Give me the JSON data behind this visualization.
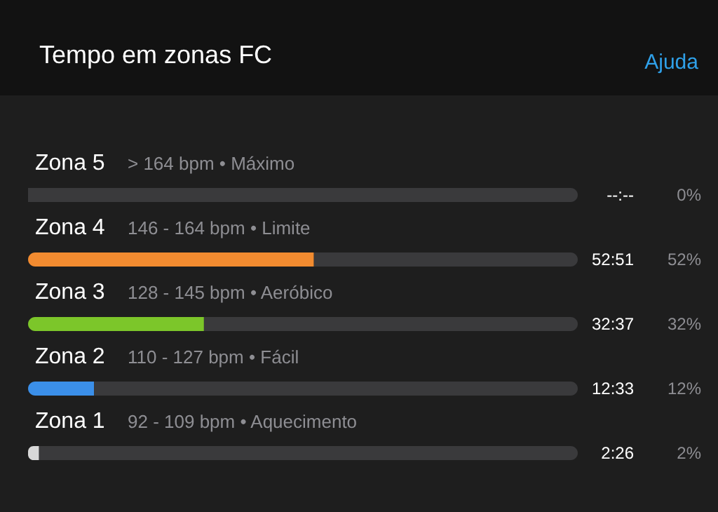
{
  "chart_data": {
    "type": "bar",
    "orientation": "horizontal",
    "stacked": true,
    "title": "Tempo em zonas FC",
    "categories": [
      "Zona 5",
      "Zona 4",
      "Zona 3",
      "Zona 2",
      "Zona 1"
    ],
    "series": [
      {
        "colors": [
          "#f28b30",
          "#f28b30",
          "#7cc62a",
          "#3b8fe9",
          "#d8d8d8"
        ],
        "values": [
          0,
          52,
          32,
          12,
          2
        ],
        "value_labels": [
          "0%",
          "52%",
          "32%",
          "12%",
          "2%"
        ]
      },
      {
        "color": "#3a3a3c",
        "values": [
          100,
          48,
          68,
          88,
          98
        ]
      }
    ],
    "xlim": [
      0,
      100
    ],
    "tick_labels": "y",
    "annotations": [
      "Ajuda",
      "> 164 bpm • Máximo",
      "146 - 164 bpm • Limite",
      "128 - 145 bpm • Aeróbico",
      "110 - 127 bpm • Fácil",
      "92 - 109 bpm • Aquecimento",
      "--:--",
      "52:51",
      "32:37",
      "12:33",
      "2:26"
    ]
  }
}
